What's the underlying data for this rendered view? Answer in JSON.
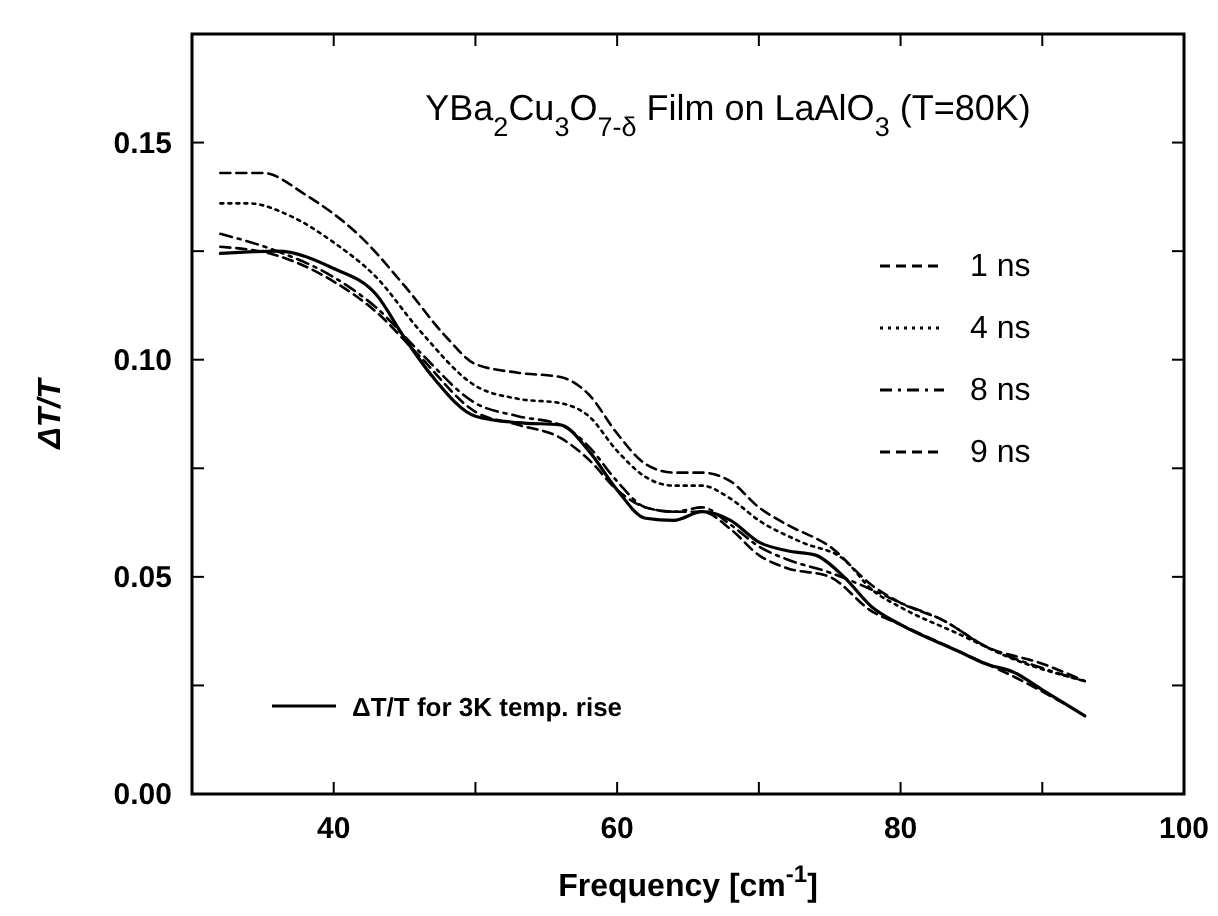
{
  "chart_data": {
    "type": "line",
    "title": "YBa$_{2}$Cu$_{3}$O$_{7-δ}$ Film on LaAlO$_{3}$ (T=80K)",
    "xlabel": "Frequency [cm$^{-1}$]",
    "ylabel": "ΔT/T",
    "xlim": [
      30,
      100
    ],
    "ylim": [
      0,
      0.175
    ],
    "xticks": [
      {
        "value": 40,
        "label": "40"
      },
      {
        "value": 50,
        "label": null
      },
      {
        "value": 60,
        "label": "60"
      },
      {
        "value": 70,
        "label": null
      },
      {
        "value": 80,
        "label": "80"
      },
      {
        "value": 90,
        "label": null
      },
      {
        "value": 100,
        "label": "100"
      }
    ],
    "yticks": [
      {
        "value": 0,
        "label": "0.00"
      },
      {
        "value": 0.025,
        "label": null
      },
      {
        "value": 0.05,
        "label": "0.05"
      },
      {
        "value": 0.075,
        "label": null
      },
      {
        "value": 0.1,
        "label": "0.10"
      },
      {
        "value": 0.125,
        "label": null
      },
      {
        "value": 0.15,
        "label": "0.15"
      }
    ],
    "grid": false,
    "legend": "right",
    "series": [
      {
        "name": "1 ns",
        "color": "#000000",
        "line_style": "dashed",
        "x": [
          32,
          35,
          38,
          42,
          45,
          48,
          50,
          53,
          56,
          58,
          60,
          62,
          64,
          66,
          68,
          70,
          72,
          75,
          78,
          80,
          83,
          86,
          90,
          93
        ],
        "values": [
          0.143,
          0.143,
          0.138,
          0.128,
          0.117,
          0.105,
          0.099,
          0.097,
          0.096,
          0.092,
          0.083,
          0.076,
          0.074,
          0.074,
          0.072,
          0.066,
          0.062,
          0.057,
          0.048,
          0.044,
          0.04,
          0.034,
          0.03,
          0.026
        ]
      },
      {
        "name": "4 ns",
        "color": "#000000",
        "line_style": "dotted",
        "x": [
          32,
          34,
          37,
          40,
          43,
          46,
          50,
          53,
          56,
          58,
          60,
          62,
          64,
          66,
          68,
          70,
          73,
          76,
          78,
          80,
          84,
          88,
          93
        ],
        "values": [
          0.136,
          0.136,
          0.133,
          0.127,
          0.119,
          0.107,
          0.094,
          0.091,
          0.09,
          0.087,
          0.079,
          0.073,
          0.071,
          0.071,
          0.068,
          0.063,
          0.058,
          0.054,
          0.047,
          0.043,
          0.037,
          0.031,
          0.026
        ]
      },
      {
        "name": "8 ns",
        "color": "#000000",
        "line_style": "dashdot",
        "x": [
          32,
          36,
          40,
          43,
          46,
          50,
          53,
          56,
          58,
          60,
          62,
          64,
          66,
          68,
          70,
          72,
          75,
          78,
          80,
          83,
          86,
          90,
          93
        ],
        "values": [
          0.129,
          0.125,
          0.119,
          0.112,
          0.102,
          0.09,
          0.087,
          0.085,
          0.08,
          0.072,
          0.066,
          0.065,
          0.066,
          0.062,
          0.057,
          0.054,
          0.051,
          0.047,
          0.044,
          0.04,
          0.034,
          0.029,
          0.026
        ]
      },
      {
        "name": "9 ns",
        "color": "#000000",
        "line_style": "dashed",
        "x": [
          32,
          36,
          40,
          43,
          46,
          50,
          53,
          56,
          58,
          60,
          62,
          64,
          66,
          68,
          70,
          72,
          75,
          78,
          80,
          84,
          88,
          92
        ],
        "values": [
          0.126,
          0.124,
          0.118,
          0.111,
          0.101,
          0.088,
          0.085,
          0.082,
          0.077,
          0.07,
          0.066,
          0.065,
          0.065,
          0.061,
          0.055,
          0.052,
          0.05,
          0.042,
          0.039,
          0.033,
          0.027,
          0.02
        ]
      },
      {
        "name": "ΔT/T for 3K temp. rise",
        "color": "#000000",
        "line_style": "solid",
        "x": [
          32,
          36,
          40,
          43,
          45,
          47,
          50,
          53,
          56,
          58,
          60,
          62,
          64,
          66,
          68,
          70,
          72,
          74,
          76,
          78,
          80,
          84,
          86,
          88,
          90,
          93
        ],
        "values": [
          0.1245,
          0.125,
          0.121,
          0.115,
          0.105,
          0.096,
          0.087,
          0.0855,
          0.085,
          0.079,
          0.07,
          0.0635,
          0.063,
          0.065,
          0.063,
          0.058,
          0.056,
          0.055,
          0.05,
          0.043,
          0.039,
          0.033,
          0.03,
          0.028,
          0.024,
          0.018
        ]
      }
    ]
  }
}
